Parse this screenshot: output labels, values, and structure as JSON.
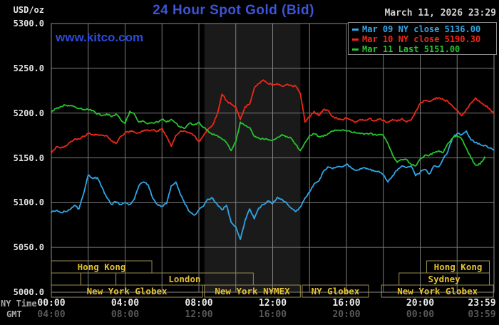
{
  "header": {
    "units": "USD/oz",
    "title": "24 Hour Spot Gold (Bid)",
    "datetime": "March 11, 2026 23:29",
    "watermark": "www.kitco.com"
  },
  "legend": {
    "items": [
      {
        "label": "Mar 09 NY close 5136.00",
        "color": "#2fa6e8"
      },
      {
        "label": "Mar 10 NY close 5190.30",
        "color": "#ee2818"
      },
      {
        "label": "Mar 11 Last 5151.00",
        "color": "#25c42c"
      }
    ]
  },
  "axes": {
    "ny_time_label": "NY Time",
    "gmt_label": "GMT",
    "y_ticks": [
      "5300.0",
      "5250.0",
      "5200.0",
      "5150.0",
      "5100.0",
      "5050.0",
      "5000.0"
    ],
    "ny_ticks": [
      "00:00",
      "04:00",
      "08:00",
      "12:00",
      "16:00",
      "20:00",
      "23:59"
    ],
    "gmt_ticks": [
      "04:00",
      "08:00",
      "12:00",
      "16:00",
      "20:00",
      "00:00",
      "03:59"
    ]
  },
  "sessions": {
    "rows": [
      {
        "boxes": [
          {
            "label": "Hong Kong",
            "start": 0,
            "end": 5.45
          },
          {
            "label": "Hong Kong",
            "start": 20.35,
            "end": 23.75
          }
        ]
      },
      {
        "boxes": [
          {
            "label": "",
            "start": 0,
            "end": 1.6
          },
          {
            "label": "",
            "start": 1.6,
            "end": 3.5
          },
          {
            "label": "London",
            "start": 3.5,
            "end": 10.95
          },
          {
            "label": "Sydney",
            "start": 18.85,
            "end": 23.75
          }
        ]
      },
      {
        "boxes": [
          {
            "label": "New York Globex",
            "start": 0,
            "end": 8.2
          },
          {
            "label": "New York NYMEX",
            "start": 8.3,
            "end": 13.5
          },
          {
            "label": "NY Globex",
            "start": 13.6,
            "end": 17.2
          },
          {
            "label": "New York Globex",
            "start": 17.9,
            "end": 23.97
          }
        ]
      }
    ]
  },
  "colors": {
    "background": "#000000",
    "frame": "#8b8b8b",
    "grid": "#7c7c7c",
    "band": "#1a1a1a",
    "title": "#3c55d9",
    "watermark": "#2b4cd9",
    "date": "#d0d0d0",
    "y_label": "#e2e2e2",
    "ny_tick": "#eaeaea",
    "gmt_tick": "#585858",
    "axis_name": "#a8a8a8",
    "session_border": "#9a8c50",
    "session_text": "#e5c02e"
  },
  "chart_data": {
    "type": "line",
    "title": "24 Hour Spot Gold (Bid)",
    "xlabel": "NY Time (hours 00:00-23:59)",
    "ylabel": "USD/oz",
    "ylim": [
      5000,
      5300
    ],
    "x_range_hours": [
      0,
      24
    ],
    "grid": true,
    "legend_position": "top-right",
    "y_tick_values": [
      5300,
      5250,
      5200,
      5150,
      5100,
      5050,
      5000
    ],
    "x_label_hours": [
      0,
      4,
      8,
      12,
      16,
      20,
      23.983
    ],
    "x_gridline_hours": [
      2,
      4,
      6,
      8,
      10,
      12,
      14,
      16,
      18,
      20,
      22
    ],
    "shaded_band_hours": [
      8.3,
      13.5
    ],
    "sample_interval_hours": 0.25,
    "series": [
      {
        "name": "Mar 09 NY close 5136.00",
        "color": "#2fa6e8",
        "start_hour": 0,
        "values": [
          5089,
          5091,
          5089,
          5090,
          5092,
          5097,
          5093,
          5110,
          5131,
          5127,
          5128,
          5117,
          5106,
          5098,
          5101,
          5098,
          5100,
          5098,
          5104,
          5119,
          5123,
          5120,
          5105,
          5098,
          5096,
          5099,
          5119,
          5123,
          5109,
          5098,
          5090,
          5086,
          5092,
          5096,
          5104,
          5105,
          5098,
          5092,
          5097,
          5078,
          5073,
          5059,
          5080,
          5093,
          5082,
          5094,
          5098,
          5102,
          5099,
          5106,
          5104,
          5100,
          5094,
          5090,
          5095,
          5105,
          5112,
          5121,
          5124,
          5135,
          5140,
          5138,
          5140,
          5140,
          5143,
          5139,
          5136,
          5138,
          5139,
          5137,
          5135,
          5135,
          5131,
          5123,
          5130,
          5136,
          5141,
          5139,
          5141,
          5130,
          5134,
          5137,
          5132,
          5141,
          5140,
          5149,
          5157,
          5172,
          5177,
          5176,
          5180,
          5170,
          5167,
          5165,
          5164,
          5161,
          5159
        ]
      },
      {
        "name": "Mar 10 NY close 5190.30",
        "color": "#ee2818",
        "start_hour": 0,
        "values": [
          5155,
          5162,
          5161,
          5163,
          5167,
          5171,
          5171,
          5174,
          5177,
          5176,
          5176,
          5175,
          5175,
          5169,
          5166,
          5174,
          5178,
          5180,
          5179,
          5178,
          5180,
          5181,
          5181,
          5180,
          5183,
          5174,
          5163,
          5175,
          5180,
          5180,
          5178,
          5175,
          5168,
          5175,
          5182,
          5187,
          5199,
          5221,
          5214,
          5210,
          5207,
          5193,
          5207,
          5210,
          5228,
          5233,
          5237,
          5233,
          5232,
          5233,
          5230,
          5232,
          5231,
          5230,
          5222,
          5190,
          5196,
          5202,
          5197,
          5204,
          5203,
          5196,
          5194,
          5193,
          5194,
          5192,
          5190,
          5193,
          5192,
          5194,
          5191,
          5193,
          5192,
          5190,
          5193,
          5191,
          5194,
          5190,
          5192,
          5202,
          5211,
          5214,
          5213,
          5216,
          5217,
          5215,
          5213,
          5208,
          5203,
          5197,
          5204,
          5211,
          5217,
          5212,
          5209,
          5205,
          5199
        ]
      },
      {
        "name": "Mar 11 Last 5151.00",
        "color": "#25c42c",
        "start_hour": 0,
        "values": [
          5201,
          5205,
          5207,
          5209,
          5208,
          5207,
          5205,
          5204,
          5204,
          5203,
          5199,
          5197,
          5199,
          5196,
          5199,
          5193,
          5188,
          5202,
          5199,
          5190,
          5191,
          5188,
          5189,
          5190,
          5193,
          5190,
          5193,
          5189,
          5184,
          5183,
          5189,
          5187,
          5190,
          5184,
          5180,
          5176,
          5175,
          5171,
          5167,
          5158,
          5168,
          5190,
          5186,
          5184,
          5174,
          5172,
          5171,
          5170,
          5170,
          5173,
          5176,
          5174,
          5172,
          5165,
          5158,
          5167,
          5175,
          5177,
          5174,
          5174,
          5177,
          5180,
          5181,
          5181,
          5180,
          5179,
          5178,
          5177,
          5177,
          5177,
          5176,
          5176,
          5175,
          5166,
          5153,
          5145,
          5148,
          5148,
          5143,
          5141,
          5149,
          5153,
          5153,
          5156,
          5158,
          5156,
          5166,
          5172,
          5175,
          5171,
          5161,
          5150,
          5142,
          5143,
          5151
        ]
      }
    ]
  }
}
